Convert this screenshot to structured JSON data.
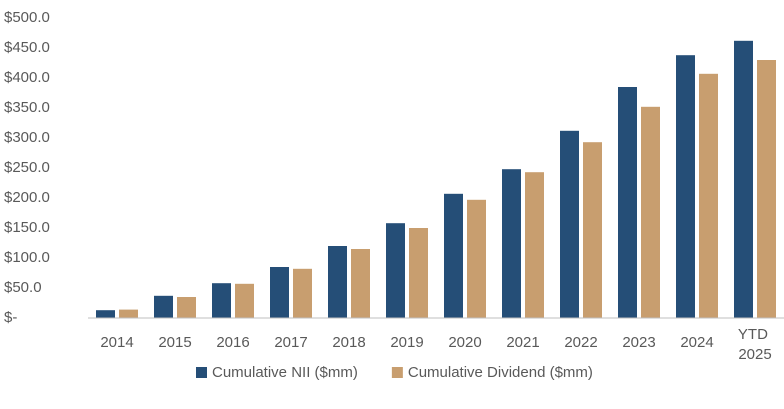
{
  "chart_data": {
    "type": "bar",
    "categories": [
      "2014",
      "2015",
      "2016",
      "2017",
      "2018",
      "2019",
      "2020",
      "2021",
      "2022",
      "2023",
      "2024",
      "YTD 2025"
    ],
    "series": [
      {
        "name": "Cumulative NII ($mm)",
        "color": "#254e77",
        "values": [
          13,
          37,
          58,
          85,
          120,
          158,
          207,
          248,
          312,
          385,
          438,
          462
        ]
      },
      {
        "name": "Cumulative Dividend ($mm)",
        "color": "#c89e6f",
        "values": [
          14,
          35,
          57,
          82,
          115,
          150,
          197,
          243,
          293,
          352,
          407,
          430
        ]
      }
    ],
    "ylim": [
      0,
      500
    ],
    "yticks": [
      {
        "value": 0,
        "label": "$-"
      },
      {
        "value": 50,
        "label": "$50.0"
      },
      {
        "value": 100,
        "label": "$100.0"
      },
      {
        "value": 150,
        "label": "$150.0"
      },
      {
        "value": 200,
        "label": "$200.0"
      },
      {
        "value": 250,
        "label": "$250.0"
      },
      {
        "value": 300,
        "label": "$300.0"
      },
      {
        "value": 350,
        "label": "$350.0"
      },
      {
        "value": 400,
        "label": "$400.0"
      },
      {
        "value": 450,
        "label": "$450.0"
      },
      {
        "value": 500,
        "label": "$500.0"
      }
    ],
    "grid": false,
    "legend": "bottom"
  }
}
